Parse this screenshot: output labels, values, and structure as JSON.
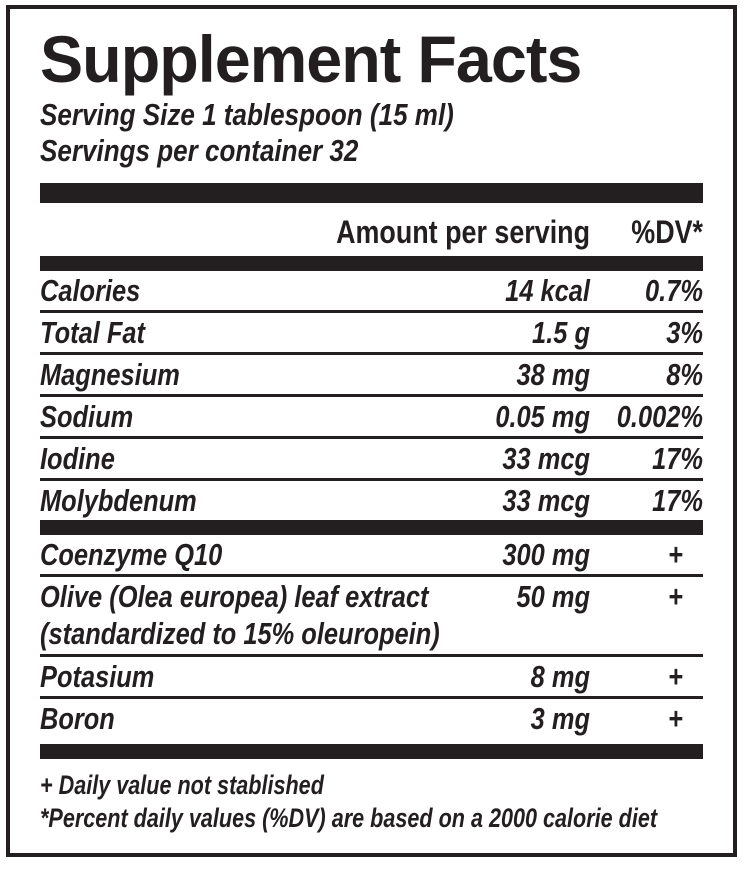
{
  "label": {
    "title": "Supplement Facts",
    "serving_size": "Serving Size 1 tablespoon (15 ml)",
    "servings_per_container": "Servings per container 32",
    "header": {
      "amount": "Amount per serving",
      "dv": "%DV*"
    },
    "section1": [
      {
        "name": "Calories",
        "amount": "14 kcal",
        "dv": "0.7%"
      },
      {
        "name": "Total Fat",
        "amount": "1.5 g",
        "dv": "3%"
      },
      {
        "name": "Magnesium",
        "amount": "38 mg",
        "dv": "8%"
      },
      {
        "name": "Sodium",
        "amount": "0.05 mg",
        "dv": "0.002%"
      },
      {
        "name": "Iodine",
        "amount": "33 mcg",
        "dv": "17%"
      },
      {
        "name": "Molybdenum",
        "amount": "33 mcg",
        "dv": "17%"
      }
    ],
    "section2": [
      {
        "name": "Coenzyme Q10",
        "amount": "300 mg",
        "dv": "+"
      },
      {
        "name": "Olive (Olea europea) leaf extract",
        "name2": "(standardized to 15% oleuropein)",
        "amount": "50 mg",
        "dv": "+"
      },
      {
        "name": "Potasium",
        "amount": "8 mg",
        "dv": "+"
      },
      {
        "name": "Boron",
        "amount": "3 mg",
        "dv": "+"
      }
    ],
    "footnotes": [
      "+ Daily value not stablished",
      "*Percent daily values (%DV) are based on a 2000 calorie diet"
    ],
    "colors": {
      "ink": "#231f20",
      "background": "#ffffff"
    }
  }
}
